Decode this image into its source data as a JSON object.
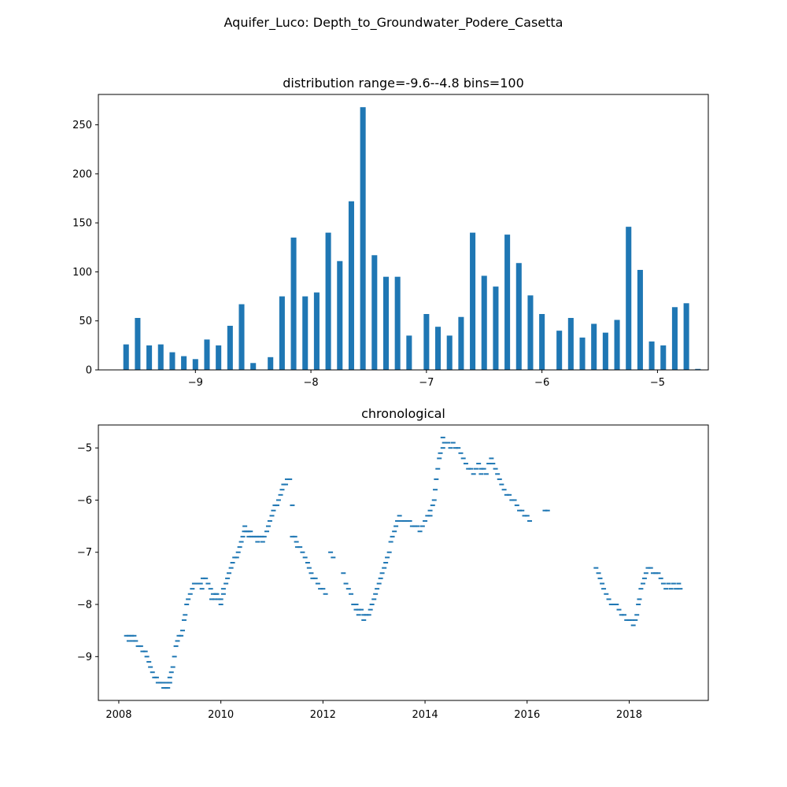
{
  "figure": {
    "suptitle": "Aquifer_Luco: Depth_to_Groundwater_Podere_Casetta"
  },
  "colors": {
    "series": "#1f77b4",
    "axes": "#000000",
    "background": "#ffffff"
  },
  "chart_data": [
    {
      "type": "bar",
      "title": "distribution range=-9.6--4.8 bins=100",
      "xlabel": "",
      "ylabel": "",
      "xlim": [
        -9.84,
        -4.56
      ],
      "ylim": [
        0,
        281
      ],
      "bin_width": 0.048,
      "x_ticks": [
        -9,
        -8,
        -7,
        -6,
        -5
      ],
      "x_tick_labels": [
        "−9",
        "−8",
        "−7",
        "−6",
        "−5"
      ],
      "y_ticks": [
        0,
        50,
        100,
        150,
        200,
        250
      ],
      "y_tick_labels": [
        "0",
        "50",
        "100",
        "150",
        "200",
        "250"
      ],
      "grid": false,
      "bars": [
        {
          "x": -9.6,
          "value": 26
        },
        {
          "x": -9.5,
          "value": 53
        },
        {
          "x": -9.4,
          "value": 25
        },
        {
          "x": -9.3,
          "value": 26
        },
        {
          "x": -9.2,
          "value": 18
        },
        {
          "x": -9.1,
          "value": 14
        },
        {
          "x": -9.0,
          "value": 11
        },
        {
          "x": -8.9,
          "value": 31
        },
        {
          "x": -8.8,
          "value": 25
        },
        {
          "x": -8.7,
          "value": 45
        },
        {
          "x": -8.6,
          "value": 67
        },
        {
          "x": -8.5,
          "value": 7
        },
        {
          "x": -8.4,
          "value": 0
        },
        {
          "x": -8.35,
          "value": 13
        },
        {
          "x": -8.25,
          "value": 75
        },
        {
          "x": -8.15,
          "value": 135
        },
        {
          "x": -8.05,
          "value": 75
        },
        {
          "x": -7.95,
          "value": 79
        },
        {
          "x": -7.85,
          "value": 140
        },
        {
          "x": -7.75,
          "value": 111
        },
        {
          "x": -7.65,
          "value": 172
        },
        {
          "x": -7.55,
          "value": 268
        },
        {
          "x": -7.45,
          "value": 117
        },
        {
          "x": -7.35,
          "value": 95
        },
        {
          "x": -7.25,
          "value": 95
        },
        {
          "x": -7.15,
          "value": 35
        },
        {
          "x": -7.0,
          "value": 57
        },
        {
          "x": -6.9,
          "value": 44
        },
        {
          "x": -6.8,
          "value": 35
        },
        {
          "x": -6.7,
          "value": 54
        },
        {
          "x": -6.6,
          "value": 140
        },
        {
          "x": -6.5,
          "value": 96
        },
        {
          "x": -6.4,
          "value": 85
        },
        {
          "x": -6.3,
          "value": 138
        },
        {
          "x": -6.2,
          "value": 109
        },
        {
          "x": -6.1,
          "value": 76
        },
        {
          "x": -6.0,
          "value": 57
        },
        {
          "x": -5.85,
          "value": 40
        },
        {
          "x": -5.75,
          "value": 53
        },
        {
          "x": -5.65,
          "value": 33
        },
        {
          "x": -5.55,
          "value": 47
        },
        {
          "x": -5.45,
          "value": 38
        },
        {
          "x": -5.35,
          "value": 51
        },
        {
          "x": -5.25,
          "value": 146
        },
        {
          "x": -5.15,
          "value": 102
        },
        {
          "x": -5.05,
          "value": 29
        },
        {
          "x": -4.95,
          "value": 25
        },
        {
          "x": -4.85,
          "value": 64
        },
        {
          "x": -4.75,
          "value": 68
        },
        {
          "x": -4.65,
          "value": 1
        }
      ]
    },
    {
      "type": "scatter",
      "title": "chronological",
      "xlabel": "",
      "ylabel": "",
      "xlim": [
        2007.6,
        2019.55
      ],
      "ylim": [
        -9.84,
        -4.56
      ],
      "x_ticks": [
        2008,
        2010,
        2012,
        2014,
        2016,
        2018
      ],
      "x_tick_labels": [
        "2008",
        "2010",
        "2012",
        "2014",
        "2016",
        "2018"
      ],
      "y_ticks": [
        -9,
        -8,
        -7,
        -6,
        -5
      ],
      "y_tick_labels": [
        "−9",
        "−8",
        "−7",
        "−6",
        "−5"
      ],
      "grid": false,
      "points": [
        [
          2008.15,
          -8.6
        ],
        [
          2008.2,
          -8.6
        ],
        [
          2008.25,
          -8.6
        ],
        [
          2008.3,
          -8.6
        ],
        [
          2008.2,
          -8.7
        ],
        [
          2008.28,
          -8.7
        ],
        [
          2008.33,
          -8.7
        ],
        [
          2008.38,
          -8.8
        ],
        [
          2008.43,
          -8.8
        ],
        [
          2008.47,
          -8.9
        ],
        [
          2008.52,
          -8.9
        ],
        [
          2008.55,
          -9.0
        ],
        [
          2008.59,
          -9.1
        ],
        [
          2008.62,
          -9.2
        ],
        [
          2008.66,
          -9.3
        ],
        [
          2008.7,
          -9.4
        ],
        [
          2008.74,
          -9.4
        ],
        [
          2008.77,
          -9.5
        ],
        [
          2008.81,
          -9.5
        ],
        [
          2008.85,
          -9.5
        ],
        [
          2008.88,
          -9.6
        ],
        [
          2008.92,
          -9.6
        ],
        [
          2008.96,
          -9.6
        ],
        [
          2008.93,
          -9.5
        ],
        [
          2009.0,
          -9.5
        ],
        [
          2009.0,
          -9.4
        ],
        [
          2009.03,
          -9.3
        ],
        [
          2009.06,
          -9.2
        ],
        [
          2009.09,
          -9.0
        ],
        [
          2009.12,
          -8.8
        ],
        [
          2009.15,
          -8.7
        ],
        [
          2009.18,
          -8.6
        ],
        [
          2009.22,
          -8.6
        ],
        [
          2009.25,
          -8.5
        ],
        [
          2009.28,
          -8.3
        ],
        [
          2009.3,
          -8.2
        ],
        [
          2009.33,
          -8.0
        ],
        [
          2009.36,
          -7.9
        ],
        [
          2009.4,
          -7.8
        ],
        [
          2009.44,
          -7.7
        ],
        [
          2009.48,
          -7.6
        ],
        [
          2009.52,
          -7.6
        ],
        [
          2009.56,
          -7.6
        ],
        [
          2009.6,
          -7.6
        ],
        [
          2009.65,
          -7.5
        ],
        [
          2009.7,
          -7.5
        ],
        [
          2009.63,
          -7.7
        ],
        [
          2009.75,
          -7.6
        ],
        [
          2009.8,
          -7.7
        ],
        [
          2009.85,
          -7.8
        ],
        [
          2009.9,
          -7.8
        ],
        [
          2009.95,
          -7.9
        ],
        [
          2010.0,
          -7.9
        ],
        [
          2010.05,
          -7.8
        ],
        [
          2009.88,
          -7.9
        ],
        [
          2009.82,
          -7.9
        ],
        [
          2009.92,
          -7.8
        ],
        [
          2010.0,
          -8.0
        ],
        [
          2010.05,
          -7.7
        ],
        [
          2010.1,
          -7.6
        ],
        [
          2010.13,
          -7.5
        ],
        [
          2010.16,
          -7.4
        ],
        [
          2010.2,
          -7.3
        ],
        [
          2010.23,
          -7.2
        ],
        [
          2010.27,
          -7.1
        ],
        [
          2010.31,
          -7.1
        ],
        [
          2010.34,
          -7.0
        ],
        [
          2010.37,
          -6.9
        ],
        [
          2010.4,
          -6.8
        ],
        [
          2010.43,
          -6.7
        ],
        [
          2010.46,
          -6.6
        ],
        [
          2010.5,
          -6.6
        ],
        [
          2010.47,
          -6.5
        ],
        [
          2010.54,
          -6.6
        ],
        [
          2010.58,
          -6.6
        ],
        [
          2010.55,
          -6.7
        ],
        [
          2010.6,
          -6.7
        ],
        [
          2010.65,
          -6.7
        ],
        [
          2010.7,
          -6.7
        ],
        [
          2010.75,
          -6.7
        ],
        [
          2010.8,
          -6.7
        ],
        [
          2010.85,
          -6.7
        ],
        [
          2010.72,
          -6.8
        ],
        [
          2010.82,
          -6.8
        ],
        [
          2010.9,
          -6.6
        ],
        [
          2010.93,
          -6.5
        ],
        [
          2010.96,
          -6.4
        ],
        [
          2011.0,
          -6.3
        ],
        [
          2011.03,
          -6.2
        ],
        [
          2011.06,
          -6.1
        ],
        [
          2011.1,
          -6.1
        ],
        [
          2011.13,
          -6.0
        ],
        [
          2011.17,
          -5.9
        ],
        [
          2011.2,
          -5.8
        ],
        [
          2011.23,
          -5.7
        ],
        [
          2011.27,
          -5.7
        ],
        [
          2011.3,
          -5.6
        ],
        [
          2011.35,
          -5.6
        ],
        [
          2011.4,
          -6.1
        ],
        [
          2011.4,
          -6.7
        ],
        [
          2011.45,
          -6.7
        ],
        [
          2011.48,
          -6.8
        ],
        [
          2011.5,
          -6.9
        ],
        [
          2011.55,
          -6.9
        ],
        [
          2011.6,
          -7.0
        ],
        [
          2011.65,
          -7.1
        ],
        [
          2011.7,
          -7.2
        ],
        [
          2011.73,
          -7.3
        ],
        [
          2011.77,
          -7.4
        ],
        [
          2011.8,
          -7.5
        ],
        [
          2011.85,
          -7.5
        ],
        [
          2011.9,
          -7.6
        ],
        [
          2011.95,
          -7.7
        ],
        [
          2012.0,
          -7.7
        ],
        [
          2012.05,
          -7.8
        ],
        [
          2012.15,
          -7.0
        ],
        [
          2012.2,
          -7.1
        ],
        [
          2012.4,
          -7.4
        ],
        [
          2012.45,
          -7.6
        ],
        [
          2012.5,
          -7.7
        ],
        [
          2012.55,
          -7.8
        ],
        [
          2012.6,
          -8.0
        ],
        [
          2012.65,
          -8.0
        ],
        [
          2012.65,
          -8.1
        ],
        [
          2012.7,
          -8.1
        ],
        [
          2012.75,
          -8.1
        ],
        [
          2012.7,
          -8.2
        ],
        [
          2012.8,
          -8.2
        ],
        [
          2012.85,
          -8.2
        ],
        [
          2012.9,
          -8.2
        ],
        [
          2012.8,
          -8.3
        ],
        [
          2012.93,
          -8.1
        ],
        [
          2012.96,
          -8.0
        ],
        [
          2013.0,
          -7.9
        ],
        [
          2013.03,
          -7.8
        ],
        [
          2013.06,
          -7.7
        ],
        [
          2013.1,
          -7.6
        ],
        [
          2013.13,
          -7.5
        ],
        [
          2013.16,
          -7.4
        ],
        [
          2013.2,
          -7.3
        ],
        [
          2013.23,
          -7.2
        ],
        [
          2013.26,
          -7.1
        ],
        [
          2013.3,
          -7.0
        ],
        [
          2013.33,
          -6.8
        ],
        [
          2013.36,
          -6.7
        ],
        [
          2013.4,
          -6.6
        ],
        [
          2013.43,
          -6.5
        ],
        [
          2013.46,
          -6.4
        ],
        [
          2013.5,
          -6.3
        ],
        [
          2013.55,
          -6.4
        ],
        [
          2013.6,
          -6.4
        ],
        [
          2013.65,
          -6.4
        ],
        [
          2013.7,
          -6.4
        ],
        [
          2013.75,
          -6.5
        ],
        [
          2013.8,
          -6.5
        ],
        [
          2013.85,
          -6.5
        ],
        [
          2013.9,
          -6.6
        ],
        [
          2013.95,
          -6.5
        ],
        [
          2014.0,
          -6.4
        ],
        [
          2014.05,
          -6.3
        ],
        [
          2014.1,
          -6.3
        ],
        [
          2014.1,
          -6.2
        ],
        [
          2014.15,
          -6.1
        ],
        [
          2014.18,
          -6.0
        ],
        [
          2014.2,
          -5.8
        ],
        [
          2014.22,
          -5.6
        ],
        [
          2014.25,
          -5.4
        ],
        [
          2014.28,
          -5.2
        ],
        [
          2014.3,
          -5.1
        ],
        [
          2014.35,
          -5.0
        ],
        [
          2014.38,
          -4.9
        ],
        [
          2014.35,
          -4.8
        ],
        [
          2014.45,
          -4.9
        ],
        [
          2014.55,
          -4.9
        ],
        [
          2014.5,
          -5.0
        ],
        [
          2014.6,
          -5.0
        ],
        [
          2014.65,
          -5.0
        ],
        [
          2014.7,
          -5.1
        ],
        [
          2014.75,
          -5.2
        ],
        [
          2014.8,
          -5.3
        ],
        [
          2014.85,
          -5.4
        ],
        [
          2014.9,
          -5.4
        ],
        [
          2014.95,
          -5.5
        ],
        [
          2015.0,
          -5.4
        ],
        [
          2015.05,
          -5.3
        ],
        [
          2015.1,
          -5.4
        ],
        [
          2015.15,
          -5.4
        ],
        [
          2015.1,
          -5.5
        ],
        [
          2015.2,
          -5.5
        ],
        [
          2015.25,
          -5.3
        ],
        [
          2015.3,
          -5.2
        ],
        [
          2015.33,
          -5.3
        ],
        [
          2015.38,
          -5.4
        ],
        [
          2015.42,
          -5.5
        ],
        [
          2015.46,
          -5.6
        ],
        [
          2015.5,
          -5.7
        ],
        [
          2015.55,
          -5.8
        ],
        [
          2015.6,
          -5.9
        ],
        [
          2015.65,
          -5.9
        ],
        [
          2015.7,
          -6.0
        ],
        [
          2015.75,
          -6.0
        ],
        [
          2015.8,
          -6.1
        ],
        [
          2015.85,
          -6.2
        ],
        [
          2015.9,
          -6.2
        ],
        [
          2015.95,
          -6.3
        ],
        [
          2016.0,
          -6.3
        ],
        [
          2016.05,
          -6.4
        ],
        [
          2016.35,
          -6.2
        ],
        [
          2016.4,
          -6.2
        ],
        [
          2017.35,
          -7.3
        ],
        [
          2017.4,
          -7.4
        ],
        [
          2017.43,
          -7.5
        ],
        [
          2017.47,
          -7.6
        ],
        [
          2017.5,
          -7.7
        ],
        [
          2017.55,
          -7.8
        ],
        [
          2017.6,
          -7.9
        ],
        [
          2017.65,
          -8.0
        ],
        [
          2017.7,
          -8.0
        ],
        [
          2017.75,
          -8.0
        ],
        [
          2017.8,
          -8.1
        ],
        [
          2017.85,
          -8.2
        ],
        [
          2017.9,
          -8.2
        ],
        [
          2017.95,
          -8.3
        ],
        [
          2018.0,
          -8.3
        ],
        [
          2018.05,
          -8.3
        ],
        [
          2018.08,
          -8.4
        ],
        [
          2018.12,
          -8.3
        ],
        [
          2018.15,
          -8.2
        ],
        [
          2018.18,
          -8.0
        ],
        [
          2018.2,
          -7.9
        ],
        [
          2018.23,
          -7.7
        ],
        [
          2018.27,
          -7.6
        ],
        [
          2018.3,
          -7.5
        ],
        [
          2018.33,
          -7.4
        ],
        [
          2018.37,
          -7.3
        ],
        [
          2018.42,
          -7.3
        ],
        [
          2018.47,
          -7.4
        ],
        [
          2018.52,
          -7.4
        ],
        [
          2018.57,
          -7.4
        ],
        [
          2018.62,
          -7.5
        ],
        [
          2018.67,
          -7.6
        ],
        [
          2018.72,
          -7.7
        ],
        [
          2018.77,
          -7.6
        ],
        [
          2018.82,
          -7.7
        ],
        [
          2018.87,
          -7.6
        ],
        [
          2018.92,
          -7.7
        ],
        [
          2018.97,
          -7.6
        ],
        [
          2019.0,
          -7.7
        ]
      ]
    }
  ]
}
